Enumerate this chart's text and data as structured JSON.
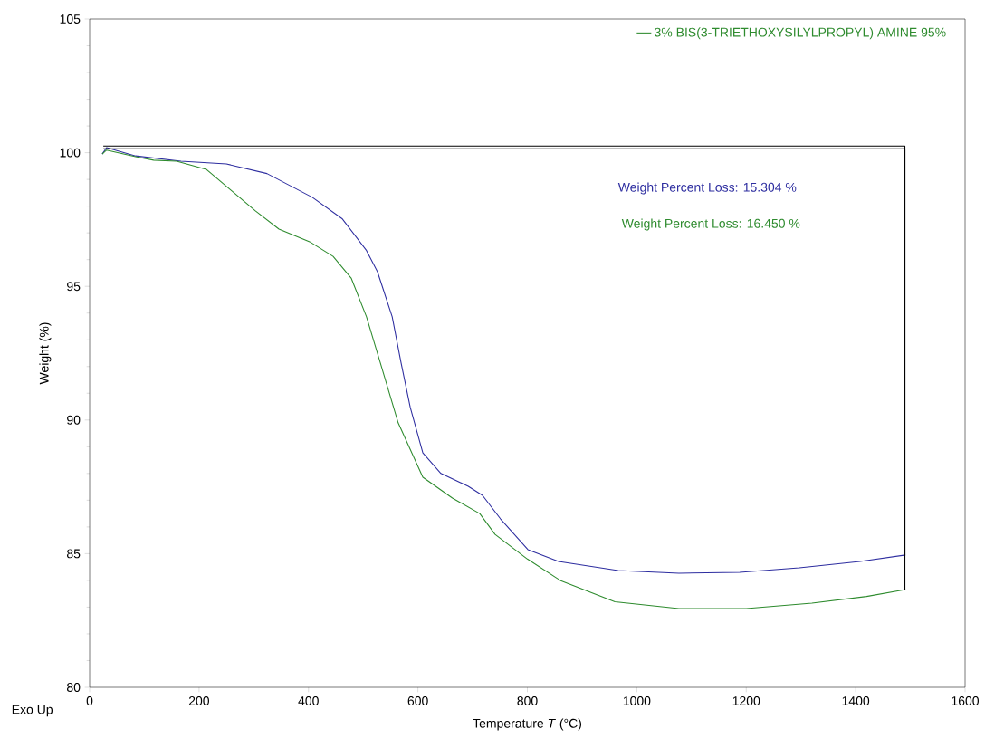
{
  "chart_data": {
    "type": "line",
    "xlabel": "Temperature *T* (°C)",
    "ylabel": "Weight (%)",
    "xlim": [
      0,
      1600
    ],
    "ylim": [
      80,
      105
    ],
    "xticks": [
      0,
      200,
      400,
      600,
      800,
      1000,
      1200,
      1400,
      1600
    ],
    "yticks": [
      80,
      85,
      90,
      95,
      100,
      105
    ],
    "legend": "top",
    "line_style": "solid",
    "marker": "none",
    "annotations": [
      "Weight Percent Loss: 15.304 %",
      "Weight Percent Loss: 16.450 %",
      "Exo Up"
    ],
    "series": [
      {
        "color": "#2e2ea0",
        "x": [
          23,
          31,
          84,
          167,
          250,
          324,
          407,
          462,
          506,
          526,
          553,
          569,
          586,
          609,
          642,
          692,
          718,
          751,
          801,
          857,
          966,
          1077,
          1188,
          1297,
          1408,
          1491
        ],
        "values": [
          99.95,
          100.19,
          99.88,
          99.68,
          99.58,
          99.22,
          98.33,
          97.52,
          96.34,
          95.55,
          93.86,
          92.16,
          90.47,
          88.77,
          88.0,
          87.52,
          87.18,
          86.3,
          85.15,
          84.71,
          84.37,
          84.27,
          84.3,
          84.47,
          84.71,
          84.95
        ]
      },
      {
        "name": "3% BIS(3-TRIETHOXYSILYLPROPYL) AMINE 95%",
        "color": "#2e8b2e",
        "x": [
          23,
          31,
          84,
          117,
          159,
          213,
          258,
          303,
          346,
          402,
          445,
          478,
          506,
          531,
          564,
          609,
          663,
          713,
          741,
          800,
          860,
          960,
          1077,
          1200,
          1320,
          1420,
          1491
        ],
        "values": [
          99.95,
          100.1,
          99.85,
          99.72,
          99.68,
          99.38,
          98.6,
          97.82,
          97.14,
          96.67,
          96.12,
          95.31,
          93.86,
          92.16,
          89.89,
          87.86,
          87.08,
          86.5,
          85.72,
          84.8,
          84.0,
          83.2,
          82.95,
          82.95,
          83.15,
          83.4,
          83.66
        ]
      },
      {
        "color": "#000000",
        "x": [
          25,
          1490,
          1490
        ],
        "values": [
          100.25,
          100.25,
          84.95
        ]
      },
      {
        "color": "#000000",
        "x": [
          25,
          1490,
          1490
        ],
        "values": [
          100.15,
          100.15,
          83.66
        ]
      }
    ]
  }
}
